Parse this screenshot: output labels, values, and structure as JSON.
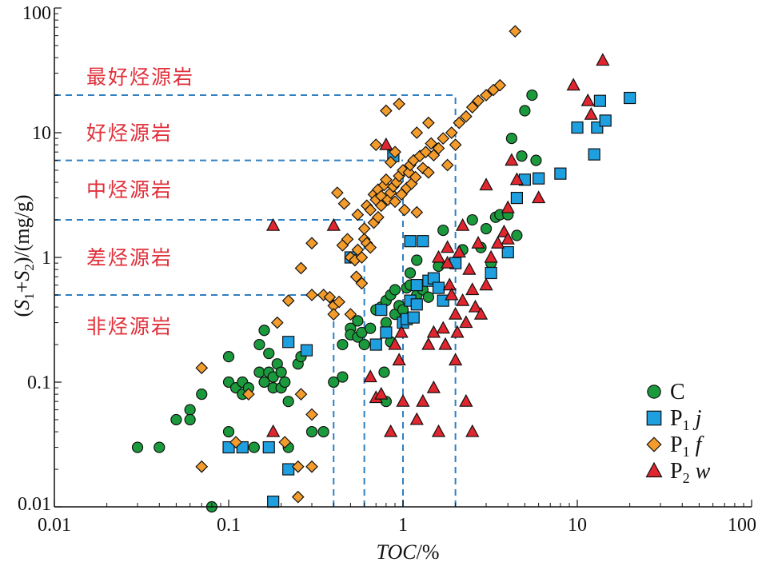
{
  "chart_data": {
    "type": "scatter",
    "x_scale": "log",
    "y_scale": "log",
    "xlim": [
      0.01,
      100
    ],
    "ylim": [
      0.01,
      100
    ],
    "xlabel_italic": "TOC",
    "xlabel_rest": "/%",
    "ylabel": {
      "open": "(",
      "s1": "S",
      "s1_sub": "1",
      "plus": "+",
      "s2": "S",
      "s2_sub": "2",
      "rest": ")/(mg/g)"
    },
    "x_ticks": [
      {
        "value": 0.01,
        "label": "0.01"
      },
      {
        "value": 0.1,
        "label": "0.1"
      },
      {
        "value": 1,
        "label": "1"
      },
      {
        "value": 10,
        "label": "10"
      },
      {
        "value": 100,
        "label": "100"
      }
    ],
    "y_ticks": [
      {
        "value": 0.01,
        "label": "0.01"
      },
      {
        "value": 0.1,
        "label": "0.1"
      },
      {
        "value": 1,
        "label": "1"
      },
      {
        "value": 10,
        "label": "10"
      },
      {
        "value": 100,
        "label": "100"
      }
    ],
    "zones": [
      {
        "label": "最好烃源岩",
        "y": 28
      },
      {
        "label": "好烃源岩",
        "y": 10
      },
      {
        "label": "中烃源岩",
        "y": 3.5
      },
      {
        "label": "差烃源岩",
        "y": 1.0
      },
      {
        "label": "非烃源岩",
        "y": 0.28
      }
    ],
    "guide_lines": {
      "color": "#2f7fc1",
      "horizontal": [
        {
          "y": 20,
          "x_end": 2
        },
        {
          "y": 6,
          "x_end": 1
        },
        {
          "y": 2,
          "x_end": 0.6
        },
        {
          "y": 0.5,
          "x_end": 0.4
        }
      ],
      "vertical": [
        {
          "x": 0.4,
          "y_end": 0.5
        },
        {
          "x": 0.6,
          "y_end": 2
        },
        {
          "x": 1,
          "y_end": 6
        },
        {
          "x": 2,
          "y_end": 20
        }
      ]
    },
    "legend_position": "bottom-right",
    "series": [
      {
        "name": "C",
        "marker": "circle",
        "color": "#1a9a3c",
        "points": [
          [
            0.03,
            0.03
          ],
          [
            0.04,
            0.03
          ],
          [
            0.05,
            0.05
          ],
          [
            0.06,
            0.06
          ],
          [
            0.06,
            0.05
          ],
          [
            0.07,
            0.08
          ],
          [
            0.08,
            0.01
          ],
          [
            0.1,
            0.16
          ],
          [
            0.1,
            0.1
          ],
          [
            0.1,
            0.04
          ],
          [
            0.11,
            0.09
          ],
          [
            0.12,
            0.1
          ],
          [
            0.12,
            0.08
          ],
          [
            0.13,
            0.09
          ],
          [
            0.14,
            0.03
          ],
          [
            0.15,
            0.12
          ],
          [
            0.15,
            0.2
          ],
          [
            0.16,
            0.26
          ],
          [
            0.16,
            0.1
          ],
          [
            0.17,
            0.17
          ],
          [
            0.17,
            0.12
          ],
          [
            0.18,
            0.11
          ],
          [
            0.18,
            0.09
          ],
          [
            0.19,
            0.14
          ],
          [
            0.2,
            0.12
          ],
          [
            0.2,
            0.09
          ],
          [
            0.21,
            0.1
          ],
          [
            0.22,
            0.07
          ],
          [
            0.22,
            0.03
          ],
          [
            0.25,
            0.14
          ],
          [
            0.26,
            0.16
          ],
          [
            0.3,
            0.04
          ],
          [
            0.35,
            0.04
          ],
          [
            0.4,
            0.1
          ],
          [
            0.45,
            0.11
          ],
          [
            0.45,
            0.2
          ],
          [
            0.5,
            0.27
          ],
          [
            0.5,
            0.24
          ],
          [
            0.55,
            0.31
          ],
          [
            0.55,
            0.23
          ],
          [
            0.58,
            0.25
          ],
          [
            0.6,
            0.2
          ],
          [
            0.65,
            0.27
          ],
          [
            0.7,
            0.38
          ],
          [
            0.75,
            0.4
          ],
          [
            0.8,
            0.45
          ],
          [
            0.8,
            0.3
          ],
          [
            0.85,
            0.21
          ],
          [
            0.85,
            0.5
          ],
          [
            0.9,
            0.35
          ],
          [
            0.9,
            0.55
          ],
          [
            0.95,
            0.41
          ],
          [
            1.0,
            0.38
          ],
          [
            1.0,
            0.3
          ],
          [
            1.05,
            0.57
          ],
          [
            1.1,
            0.6
          ],
          [
            1.1,
            0.75
          ],
          [
            1.2,
            0.95
          ],
          [
            1.2,
            0.5
          ],
          [
            1.3,
            0.55
          ],
          [
            1.4,
            0.48
          ],
          [
            1.5,
            0.65
          ],
          [
            1.6,
            0.85
          ],
          [
            1.7,
            1.65
          ],
          [
            2.2,
            1.15
          ],
          [
            2.5,
            2.0
          ],
          [
            2.8,
            1.2
          ],
          [
            3.0,
            1.7
          ],
          [
            3.2,
            0.9
          ],
          [
            3.4,
            2.1
          ],
          [
            3.6,
            2.2
          ],
          [
            4.0,
            2.2
          ],
          [
            4.2,
            9.0
          ],
          [
            4.5,
            1.5
          ],
          [
            4.8,
            6.5
          ],
          [
            5.0,
            15.0
          ],
          [
            5.5,
            20.0
          ],
          [
            5.8,
            6.0
          ],
          [
            0.8,
            0.07
          ],
          [
            0.78,
            0.12
          ]
        ]
      },
      {
        "name": "P₁j",
        "label_base": "P",
        "label_sub": "1",
        "label_italic": "j",
        "marker": "square",
        "color": "#1e9fe0",
        "points": [
          [
            0.1,
            0.03
          ],
          [
            0.12,
            0.03
          ],
          [
            0.17,
            0.03
          ],
          [
            0.18,
            0.011
          ],
          [
            0.22,
            0.02
          ],
          [
            0.22,
            0.21
          ],
          [
            0.28,
            0.18
          ],
          [
            0.5,
            1.0
          ],
          [
            0.7,
            0.2
          ],
          [
            0.75,
            0.38
          ],
          [
            0.8,
            0.25
          ],
          [
            0.88,
            6.5
          ],
          [
            1.0,
            0.3
          ],
          [
            1.05,
            0.32
          ],
          [
            1.1,
            0.45
          ],
          [
            1.15,
            0.33
          ],
          [
            1.2,
            0.42
          ],
          [
            1.3,
            1.35
          ],
          [
            1.4,
            0.65
          ],
          [
            1.5,
            0.68
          ],
          [
            1.6,
            0.57
          ],
          [
            1.7,
            0.45
          ],
          [
            2.0,
            0.9
          ],
          [
            3.2,
            0.75
          ],
          [
            4.0,
            1.1
          ],
          [
            4.5,
            3.0
          ],
          [
            5.0,
            4.2
          ],
          [
            6.0,
            4.3
          ],
          [
            8.0,
            4.7
          ],
          [
            10.0,
            11.0
          ],
          [
            12.5,
            6.7
          ],
          [
            13.0,
            11.0
          ],
          [
            13.5,
            18.0
          ],
          [
            14.5,
            12.5
          ],
          [
            20.0,
            19.0
          ],
          [
            1.2,
            0.6
          ],
          [
            1.1,
            1.35
          ]
        ]
      },
      {
        "name": "P₁f",
        "label_base": "P",
        "label_sub": "1",
        "label_italic": "f",
        "marker": "diamond",
        "color": "#f39c2c",
        "points": [
          [
            0.07,
            0.13
          ],
          [
            0.07,
            0.021
          ],
          [
            0.11,
            0.033
          ],
          [
            0.13,
            0.08
          ],
          [
            0.19,
            0.3
          ],
          [
            0.21,
            0.033
          ],
          [
            0.22,
            0.45
          ],
          [
            0.25,
            0.012
          ],
          [
            0.25,
            0.021
          ],
          [
            0.3,
            0.021
          ],
          [
            0.3,
            0.055
          ],
          [
            0.26,
            0.08
          ],
          [
            0.3,
            0.5
          ],
          [
            0.35,
            0.5
          ],
          [
            0.38,
            0.48
          ],
          [
            0.4,
            0.41
          ],
          [
            0.43,
            0.44
          ],
          [
            0.45,
            1.25
          ],
          [
            0.48,
            1.4
          ],
          [
            0.5,
            1.0
          ],
          [
            0.53,
            0.95
          ],
          [
            0.55,
            1.15
          ],
          [
            0.58,
            0.62
          ],
          [
            0.6,
            1.4
          ],
          [
            0.62,
            1.3
          ],
          [
            0.65,
            1.2
          ],
          [
            0.62,
            2.6
          ],
          [
            0.65,
            2.4
          ],
          [
            0.68,
            3.2
          ],
          [
            0.7,
            2.9
          ],
          [
            0.72,
            3.5
          ],
          [
            0.75,
            3.1
          ],
          [
            0.75,
            2.6
          ],
          [
            0.78,
            3.8
          ],
          [
            0.8,
            4.2
          ],
          [
            0.82,
            2.9
          ],
          [
            0.85,
            3.3
          ],
          [
            0.88,
            3.7
          ],
          [
            0.9,
            2.8
          ],
          [
            0.92,
            4.0
          ],
          [
            0.95,
            4.5
          ],
          [
            0.98,
            3.2
          ],
          [
            1.0,
            5.0
          ],
          [
            1.02,
            2.4
          ],
          [
            1.05,
            3.6
          ],
          [
            1.08,
            4.8
          ],
          [
            1.1,
            5.5
          ],
          [
            1.12,
            3.9
          ],
          [
            1.15,
            6.0
          ],
          [
            1.18,
            4.4
          ],
          [
            1.2,
            2.3
          ],
          [
            1.25,
            6.5
          ],
          [
            1.3,
            5.2
          ],
          [
            1.35,
            7.0
          ],
          [
            1.4,
            4.8
          ],
          [
            1.45,
            8.2
          ],
          [
            1.5,
            6.6
          ],
          [
            1.6,
            7.5
          ],
          [
            1.7,
            9.0
          ],
          [
            1.8,
            5.5
          ],
          [
            1.9,
            10.0
          ],
          [
            2.0,
            8.0
          ],
          [
            2.1,
            12.0
          ],
          [
            2.3,
            13.5
          ],
          [
            2.5,
            16.0
          ],
          [
            2.7,
            18.0
          ],
          [
            3.0,
            20.0
          ],
          [
            3.3,
            22.0
          ],
          [
            3.6,
            24.0
          ],
          [
            4.4,
            65.0
          ],
          [
            0.8,
            15.0
          ],
          [
            0.7,
            8.0
          ],
          [
            1.2,
            10.0
          ],
          [
            1.4,
            12.0
          ],
          [
            0.95,
            17.0
          ],
          [
            0.85,
            5.8
          ],
          [
            0.9,
            7.0
          ],
          [
            0.55,
            2.2
          ],
          [
            0.6,
            1.7
          ],
          [
            0.68,
            1.9
          ],
          [
            0.72,
            2.1
          ],
          [
            0.46,
            2.7
          ],
          [
            0.42,
            3.3
          ],
          [
            0.58,
            1.0
          ],
          [
            0.54,
            0.7
          ],
          [
            0.3,
            1.3
          ],
          [
            0.26,
            0.82
          ],
          [
            0.5,
            0.35
          ],
          [
            0.4,
            0.35
          ]
        ]
      },
      {
        "name": "P₂w",
        "label_base": "P",
        "label_sub": "2",
        "label_italic": "w",
        "marker": "triangle",
        "color": "#e0262e",
        "points": [
          [
            0.18,
            1.8
          ],
          [
            0.18,
            0.04
          ],
          [
            0.4,
            1.8
          ],
          [
            0.65,
            0.11
          ],
          [
            0.7,
            0.075
          ],
          [
            0.75,
            0.08
          ],
          [
            0.8,
            8.0
          ],
          [
            0.85,
            0.04
          ],
          [
            0.9,
            0.2
          ],
          [
            0.95,
            0.15
          ],
          [
            0.98,
            0.25
          ],
          [
            1.0,
            0.07
          ],
          [
            1.2,
            0.05
          ],
          [
            1.3,
            0.07
          ],
          [
            1.5,
            0.09
          ],
          [
            1.6,
            0.04
          ],
          [
            1.7,
            0.27
          ],
          [
            1.75,
            0.2
          ],
          [
            1.8,
            1.2
          ],
          [
            1.8,
            0.9
          ],
          [
            1.85,
            0.6
          ],
          [
            1.9,
            0.5
          ],
          [
            2.0,
            0.35
          ],
          [
            2.05,
            0.25
          ],
          [
            2.1,
            1.1
          ],
          [
            2.2,
            0.45
          ],
          [
            2.3,
            0.3
          ],
          [
            2.4,
            0.8
          ],
          [
            2.5,
            0.55
          ],
          [
            2.6,
            0.4
          ],
          [
            2.7,
            1.3
          ],
          [
            2.8,
            0.35
          ],
          [
            3.0,
            0.6
          ],
          [
            3.2,
            1.0
          ],
          [
            3.5,
            1.3
          ],
          [
            3.8,
            1.6
          ],
          [
            4.0,
            1.4
          ],
          [
            4.2,
            6.0
          ],
          [
            4.5,
            4.2
          ],
          [
            6.0,
            3.0
          ],
          [
            9.5,
            24.0
          ],
          [
            11.5,
            18.0
          ],
          [
            12.0,
            14.0
          ],
          [
            14.0,
            38.0
          ],
          [
            2.0,
            0.15
          ],
          [
            2.3,
            0.07
          ],
          [
            2.5,
            0.04
          ],
          [
            1.4,
            0.2
          ],
          [
            1.5,
            0.25
          ],
          [
            1.6,
            1.0
          ],
          [
            2.2,
            1.8
          ],
          [
            3.0,
            3.8
          ],
          [
            4.0,
            2.5
          ]
        ]
      }
    ]
  }
}
